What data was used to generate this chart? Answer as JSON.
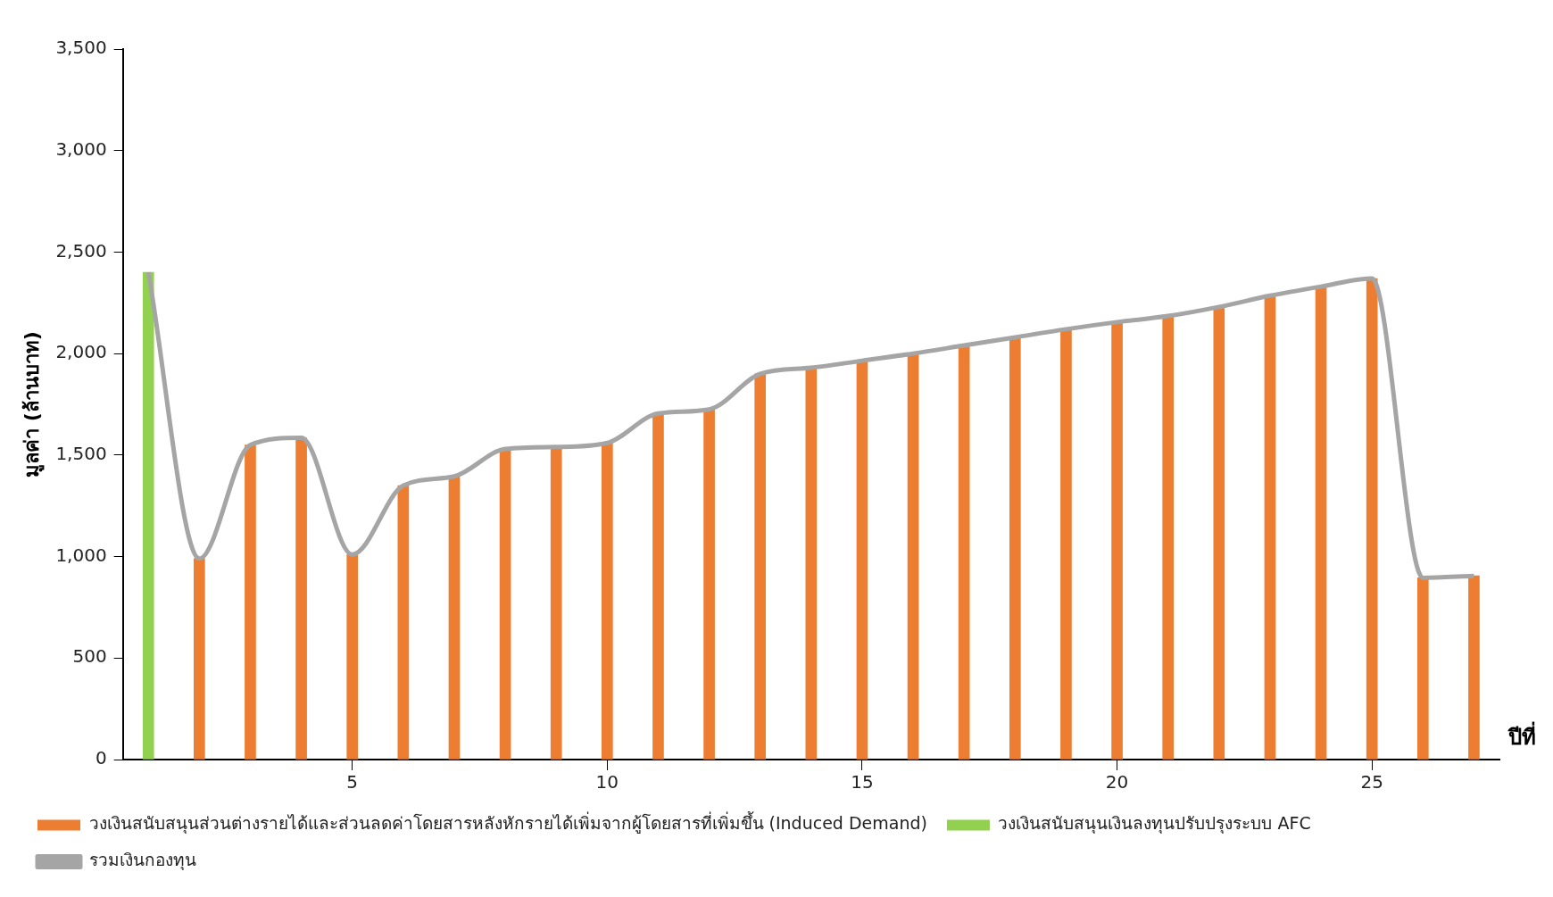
{
  "chart_data": {
    "type": "bar",
    "xlabel": "ปีที่",
    "ylabel": "มูลค่า (ล้านบาท)",
    "categories": [
      null,
      null,
      null,
      null,
      "5",
      null,
      null,
      null,
      null,
      "10",
      null,
      null,
      null,
      null,
      "15",
      null,
      null,
      null,
      null,
      "20",
      null,
      null,
      null,
      null,
      "25",
      null,
      null
    ],
    "series": [
      {
        "name": "วงเงินสนับสนุนส่วนต่างรายได้และส่วนลดค่าโดยสารหลังหักรายได้เพิ่มจากผู้โดยสารที่เพิ่มขึ้น (Induced Demand)",
        "color": "#ed7d31",
        "values": [
          null,
          990,
          1550,
          1585,
          1010,
          1350,
          1395,
          1530,
          1540,
          1560,
          1705,
          1725,
          1900,
          1930,
          1965,
          2000,
          2040,
          2080,
          2120,
          2155,
          2185,
          2230,
          2285,
          2330,
          2370,
          895,
          905
        ]
      },
      {
        "name": "วงเงินสนับสนุนเงินลงทุนปรับปรุงระบบ AFC",
        "color": "#92d050",
        "values": [
          2400,
          null,
          null,
          null,
          null,
          null,
          null,
          null,
          null,
          null,
          null,
          null,
          null,
          null,
          null,
          null,
          null,
          null,
          null,
          null,
          null,
          null,
          null,
          null,
          null,
          null,
          null
        ]
      },
      {
        "name": "รวมเงินกองทุน",
        "type": "line",
        "color": "#a5a5a5",
        "values": [
          2400,
          990,
          1550,
          1585,
          1010,
          1350,
          1395,
          1530,
          1540,
          1560,
          1705,
          1725,
          1900,
          1930,
          1965,
          2000,
          2040,
          2080,
          2120,
          2155,
          2185,
          2230,
          2285,
          2330,
          2370,
          895,
          905
        ]
      }
    ],
    "ylim": [
      0,
      3500
    ],
    "yticks": [
      0,
      500,
      {
        "value": 1000,
        "label": "1,000"
      },
      {
        "value": 1500,
        "label": "1,500"
      },
      {
        "value": 2000,
        "label": "2,000"
      },
      {
        "value": 2500,
        "label": "2,500"
      },
      {
        "value": 3000,
        "label": "3,000"
      },
      {
        "value": 3500,
        "label": "3,500"
      }
    ],
    "grid": false,
    "legend": "bottom",
    "marker": "none",
    "line_style": "solid"
  }
}
